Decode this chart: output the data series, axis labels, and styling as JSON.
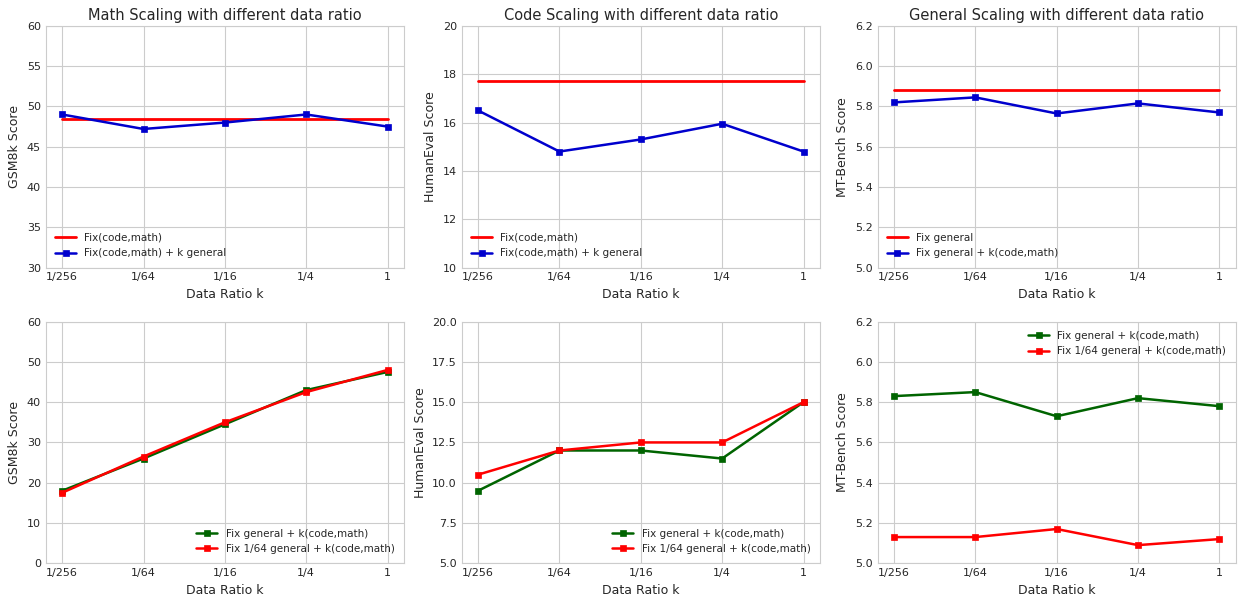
{
  "x_labels": [
    "1/256",
    "1/64",
    "1/16",
    "1/4",
    "1"
  ],
  "x_vals": [
    0,
    1,
    2,
    3,
    4
  ],
  "top_left": {
    "title": "Math Scaling with different data ratio",
    "ylabel": "GSM8k Score",
    "ylim": [
      30,
      60
    ],
    "yticks": [
      30,
      35,
      40,
      45,
      50,
      55,
      60
    ],
    "red_line": [
      48.5,
      48.5,
      48.5,
      48.5,
      48.5
    ],
    "blue_line": [
      49.0,
      47.2,
      48.0,
      49.0,
      47.5
    ],
    "red_label": "Fix(code,math)",
    "blue_label": "Fix(code,math) + k general",
    "legend_loc": "lower left"
  },
  "top_mid": {
    "title": "Code Scaling with different data ratio",
    "ylabel": "HumanEval Score",
    "ylim": [
      10,
      20
    ],
    "yticks": [
      10,
      12,
      14,
      16,
      18,
      20
    ],
    "red_line": [
      17.7,
      17.7,
      17.7,
      17.7,
      17.7
    ],
    "blue_line": [
      16.5,
      14.8,
      15.3,
      15.95,
      14.8
    ],
    "red_label": "Fix(code,math)",
    "blue_label": "Fix(code,math) + k general",
    "legend_loc": "lower left"
  },
  "top_right": {
    "title": "General Scaling with different data ratio",
    "ylabel": "MT-Bench Score",
    "ylim": [
      5.0,
      6.2
    ],
    "yticks": [
      5.0,
      5.2,
      5.4,
      5.6,
      5.8,
      6.0,
      6.2
    ],
    "red_line": [
      5.88,
      5.88,
      5.88,
      5.88,
      5.88
    ],
    "blue_line": [
      5.82,
      5.845,
      5.765,
      5.815,
      5.77
    ],
    "red_label": "Fix general",
    "blue_label": "Fix general + k(code,math)",
    "legend_loc": "lower left"
  },
  "bot_left": {
    "title": "",
    "ylabel": "GSM8k Score",
    "ylim": [
      0,
      60
    ],
    "yticks": [
      0,
      10,
      20,
      30,
      40,
      50,
      60
    ],
    "green_line": [
      18.0,
      26.0,
      34.5,
      43.0,
      47.5
    ],
    "red_line": [
      17.5,
      26.5,
      35.0,
      42.5,
      48.0
    ],
    "green_label": "Fix general + k(code,math)",
    "red_label": "Fix 1/64 general + k(code,math)",
    "legend_loc": "lower right"
  },
  "bot_mid": {
    "title": "",
    "ylabel": "HumanEval Score",
    "ylim": [
      5.0,
      20.0
    ],
    "yticks": [
      5.0,
      7.5,
      10.0,
      12.5,
      15.0,
      17.5,
      20.0
    ],
    "green_line": [
      9.5,
      12.0,
      12.0,
      11.5,
      15.0
    ],
    "red_line": [
      10.5,
      12.0,
      12.5,
      12.5,
      15.0
    ],
    "green_label": "Fix general + k(code,math)",
    "red_label": "Fix 1/64 general + k(code,math)",
    "legend_loc": "lower right"
  },
  "bot_right": {
    "title": "",
    "ylabel": "MT-Bench Score",
    "ylim": [
      5.0,
      6.2
    ],
    "yticks": [
      5.0,
      5.2,
      5.4,
      5.6,
      5.8,
      6.0,
      6.2
    ],
    "green_line": [
      5.83,
      5.85,
      5.73,
      5.82,
      5.78
    ],
    "red_line": [
      5.13,
      5.13,
      5.17,
      5.09,
      5.12
    ],
    "green_label": "Fix general + k(code,math)",
    "red_label": "Fix 1/64 general + k(code,math)",
    "legend_loc": "upper right"
  },
  "colors": {
    "red": "#FF0000",
    "blue": "#0000CD",
    "green": "#006400"
  },
  "ax_facecolor": "#eaeaf2",
  "grid_color": "white",
  "fig_facecolor": "white"
}
